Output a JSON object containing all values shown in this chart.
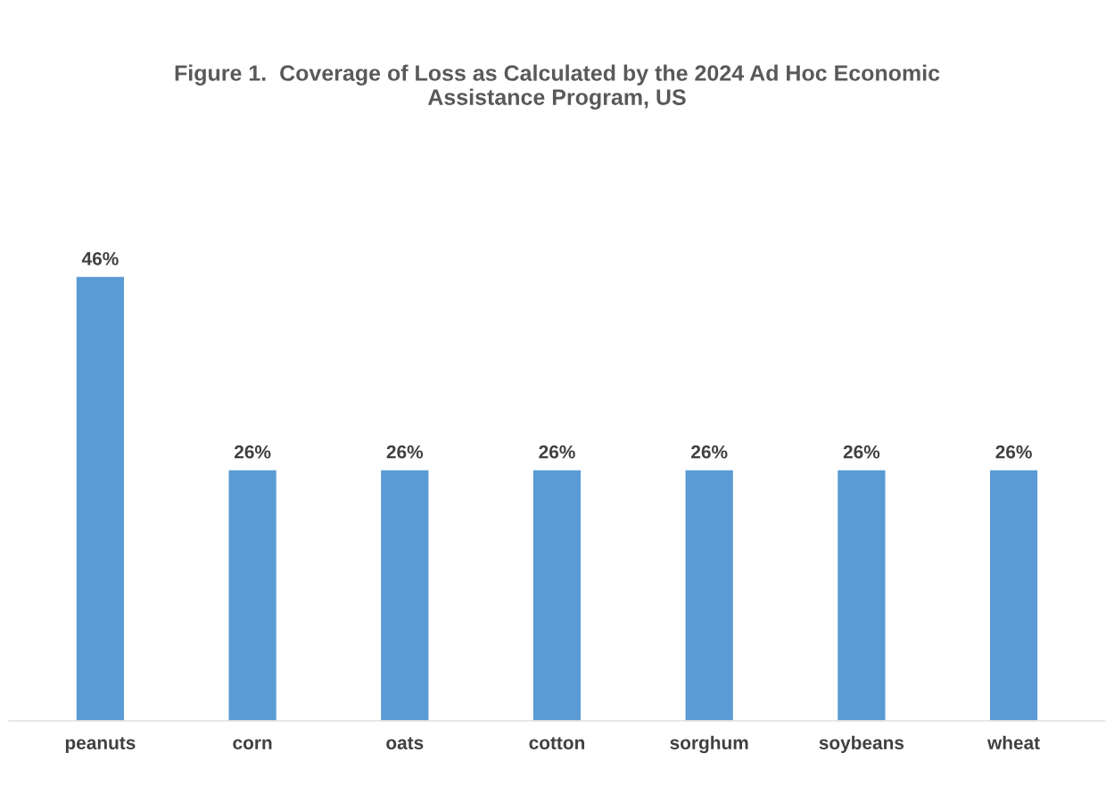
{
  "chart_data": {
    "type": "bar",
    "title": "Figure 1.  Coverage of Loss as Calculated by the 2024 Ad Hoc Economic\nAssistance Program, US",
    "categories": [
      "peanuts",
      "corn",
      "oats",
      "cotton",
      "sorghum",
      "soybeans",
      "wheat"
    ],
    "values": [
      46,
      26,
      26,
      26,
      26,
      26,
      26
    ],
    "value_labels": [
      "46%",
      "26%",
      "26%",
      "26%",
      "26%",
      "26%",
      "26%"
    ],
    "color": "#5b9bd5",
    "grid": false,
    "legend": false
  }
}
